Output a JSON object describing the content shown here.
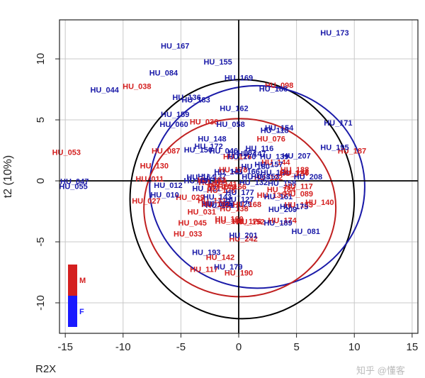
{
  "chart_data": {
    "type": "scatter",
    "ylabel": "t2 (10%)",
    "corner_label": "R2X",
    "xlim": [
      -15.5,
      15.5
    ],
    "ylim": [
      -12.5,
      13.2
    ],
    "xticks": [
      -15,
      -10,
      -5,
      0,
      5,
      10,
      15
    ],
    "yticks": [
      -10,
      -5,
      0,
      5,
      10
    ],
    "grid": true,
    "legend": {
      "placement": "bottom-left",
      "entries": [
        {
          "label": "M",
          "color": "#d42020"
        },
        {
          "label": "F",
          "color": "#1a1aff"
        }
      ]
    },
    "ellipses": [
      {
        "color": "#000000",
        "cx": 0.3,
        "cy": -1.5,
        "rx": 9.7,
        "ry": 9.8
      },
      {
        "color": "#1a1aa8",
        "cx": 1.6,
        "cy": -0.5,
        "rx": 9.3,
        "ry": 8.3
      },
      {
        "color": "#c02020",
        "cx": 0.1,
        "cy": -2.2,
        "rx": 8.3,
        "ry": 7.3
      }
    ],
    "series": [
      {
        "name": "M",
        "color": "#d42020",
        "points": [
          {
            "label": "HU_053",
            "x": -14.9,
            "y": 2.3
          },
          {
            "label": "HU_038",
            "x": -8.8,
            "y": 7.7
          },
          {
            "label": "HU_098",
            "x": 3.5,
            "y": 7.8
          },
          {
            "label": "HU_036",
            "x": -3.0,
            "y": 4.8
          },
          {
            "label": "HU_130",
            "x": -7.3,
            "y": 1.2
          },
          {
            "label": "HU_087",
            "x": -6.3,
            "y": 2.4
          },
          {
            "label": "HU_076",
            "x": 2.8,
            "y": 3.4
          },
          {
            "label": "HU_187",
            "x": 9.8,
            "y": 2.4
          },
          {
            "label": "HU_140",
            "x": 7.0,
            "y": -1.8
          },
          {
            "label": "HU_117",
            "x": 5.2,
            "y": -0.5
          },
          {
            "label": "HU_089",
            "x": 5.2,
            "y": -1.1
          },
          {
            "label": "HU_027",
            "x": -8.0,
            "y": -1.7
          },
          {
            "label": "HU_029",
            "x": -4.2,
            "y": -1.4
          },
          {
            "label": "HU_045",
            "x": -4.0,
            "y": -3.5
          },
          {
            "label": "HU_033",
            "x": -4.4,
            "y": -4.4
          },
          {
            "label": "HU_031",
            "x": -3.2,
            "y": -2.6
          },
          {
            "label": "HU_242",
            "x": 0.4,
            "y": -4.8
          },
          {
            "label": "HU_142",
            "x": -1.6,
            "y": -6.3
          },
          {
            "label": "HU_117",
            "x": -3.0,
            "y": -7.3
          },
          {
            "label": "HU_190",
            "x": 0.0,
            "y": -7.6
          },
          {
            "label": "HU_011",
            "x": -7.7,
            "y": 0.1
          }
        ]
      },
      {
        "name": "F",
        "color": "#1a1aa8",
        "points": [
          {
            "label": "HU_167",
            "x": -5.5,
            "y": 11.0
          },
          {
            "label": "HU_173",
            "x": 8.3,
            "y": 12.1
          },
          {
            "label": "HU_155",
            "x": -1.8,
            "y": 9.7
          },
          {
            "label": "HU_084",
            "x": -6.5,
            "y": 8.8
          },
          {
            "label": "HU_169",
            "x": 0.0,
            "y": 8.4
          },
          {
            "label": "HU_044",
            "x": -11.6,
            "y": 7.4
          },
          {
            "label": "HU_186",
            "x": 3.0,
            "y": 7.5
          },
          {
            "label": "HU_136",
            "x": -4.5,
            "y": 6.8
          },
          {
            "label": "HU_183",
            "x": -3.7,
            "y": 6.6
          },
          {
            "label": "HU_162",
            "x": -0.4,
            "y": 5.9
          },
          {
            "label": "HU_159",
            "x": -5.5,
            "y": 5.4
          },
          {
            "label": "HU_171",
            "x": 8.6,
            "y": 4.7
          },
          {
            "label": "HU_058",
            "x": -0.7,
            "y": 4.6
          },
          {
            "label": "HU_154",
            "x": 3.5,
            "y": 4.3
          },
          {
            "label": "HU_060",
            "x": -5.6,
            "y": 4.6
          },
          {
            "label": "HU_118",
            "x": 3.1,
            "y": 4.1
          },
          {
            "label": "HU_148",
            "x": -2.3,
            "y": 3.4
          },
          {
            "label": "HU_172",
            "x": -2.6,
            "y": 2.8
          },
          {
            "label": "HU_207",
            "x": 5.0,
            "y": 2.0
          },
          {
            "label": "HU_195",
            "x": 8.3,
            "y": 2.7
          },
          {
            "label": "HU_157",
            "x": 2.6,
            "y": 1.3
          },
          {
            "label": "HU_208",
            "x": 6.0,
            "y": 0.3
          },
          {
            "label": "HU_047",
            "x": -14.2,
            "y": -0.1
          },
          {
            "label": "HU_055",
            "x": -14.3,
            "y": -0.5
          },
          {
            "label": "HU_068",
            "x": 1.5,
            "y": 0.3
          },
          {
            "label": "HU_010",
            "x": -6.4,
            "y": -1.2
          },
          {
            "label": "HU_209",
            "x": 3.8,
            "y": -2.4
          },
          {
            "label": "HU_189",
            "x": 3.4,
            "y": -3.5
          },
          {
            "label": "HU_081",
            "x": 5.8,
            "y": -4.2
          },
          {
            "label": "HU_201",
            "x": 0.4,
            "y": -4.5
          },
          {
            "label": "HU_193",
            "x": -2.8,
            "y": -5.9
          },
          {
            "label": "HU_179",
            "x": -0.9,
            "y": -7.1
          },
          {
            "label": "HU_150",
            "x": -3.5,
            "y": 2.5
          },
          {
            "label": "HU_046",
            "x": -1.3,
            "y": 2.4
          },
          {
            "label": "HU_116",
            "x": 1.8,
            "y": 2.6
          },
          {
            "label": "HU_012",
            "x": -6.1,
            "y": -0.4
          }
        ]
      }
    ],
    "cluster_labels": [
      "HU_121",
      "HU_122",
      "HU_123",
      "HU_124",
      "HU_125",
      "HU_126",
      "HU_127",
      "HU_128",
      "HU_129",
      "HU_131",
      "HU_132",
      "HU_133",
      "HU_134",
      "HU_135",
      "HU_137",
      "HU_138",
      "HU_139",
      "HU_141",
      "HU_143",
      "HU_144",
      "HU_145",
      "HU_146",
      "HU_147",
      "HU_149",
      "HU_151",
      "HU_152",
      "HU_153",
      "HU_156",
      "HU_158",
      "HU_160",
      "HU_161",
      "HU_163",
      "HU_164",
      "HU_165",
      "HU_166",
      "HU_168",
      "HU_170",
      "HU_174",
      "HU_175",
      "HU_176",
      "HU_177",
      "HU_178",
      "HU_180",
      "HU_181",
      "HU_182",
      "HU_184",
      "HU_185",
      "HU_188",
      "HU_191",
      "HU_192"
    ]
  },
  "watermark": "知乎 @懂客"
}
